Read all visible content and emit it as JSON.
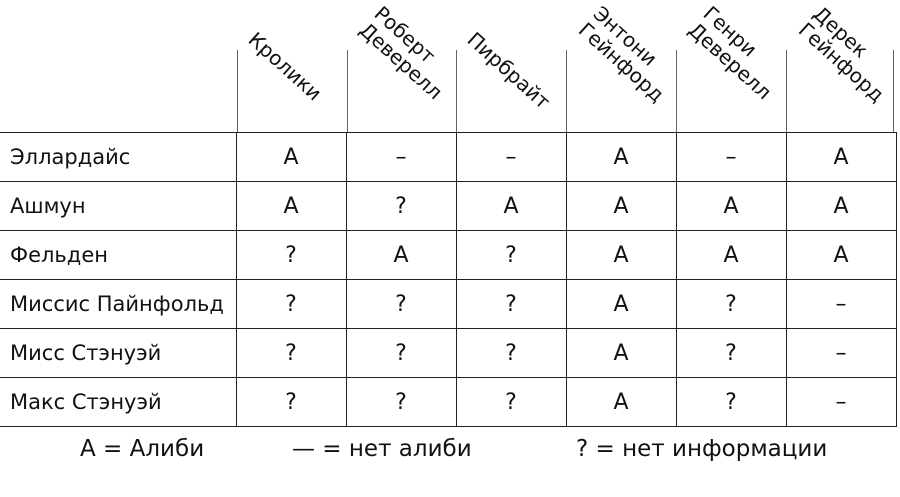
{
  "columns": [
    "Кролики",
    "Роберт\nДеверелл",
    "Пирбрайт",
    "Энтони\nГейнфорд",
    "Генри\nДеверелл",
    "Дерек\nГейнфорд"
  ],
  "rows": [
    {
      "name": "Эллардайс",
      "values": [
        "A",
        "–",
        "–",
        "A",
        "–",
        "A"
      ]
    },
    {
      "name": "Ашмун",
      "values": [
        "A",
        "?",
        "A",
        "A",
        "A",
        "A"
      ]
    },
    {
      "name": "Фельден",
      "values": [
        "?",
        "A",
        "?",
        "A",
        "A",
        "A"
      ]
    },
    {
      "name": "Миссис Пайнфольд",
      "values": [
        "?",
        "?",
        "?",
        "A",
        "?",
        "–"
      ]
    },
    {
      "name": "Мисс Стэнуэй",
      "values": [
        "?",
        "?",
        "?",
        "A",
        "?",
        "–"
      ]
    },
    {
      "name": "Макс Стэнуэй",
      "values": [
        "?",
        "?",
        "?",
        "A",
        "?",
        "–"
      ]
    }
  ],
  "legend": [
    "A = Алиби",
    "— = нет алиби",
    "? = нет информации"
  ]
}
